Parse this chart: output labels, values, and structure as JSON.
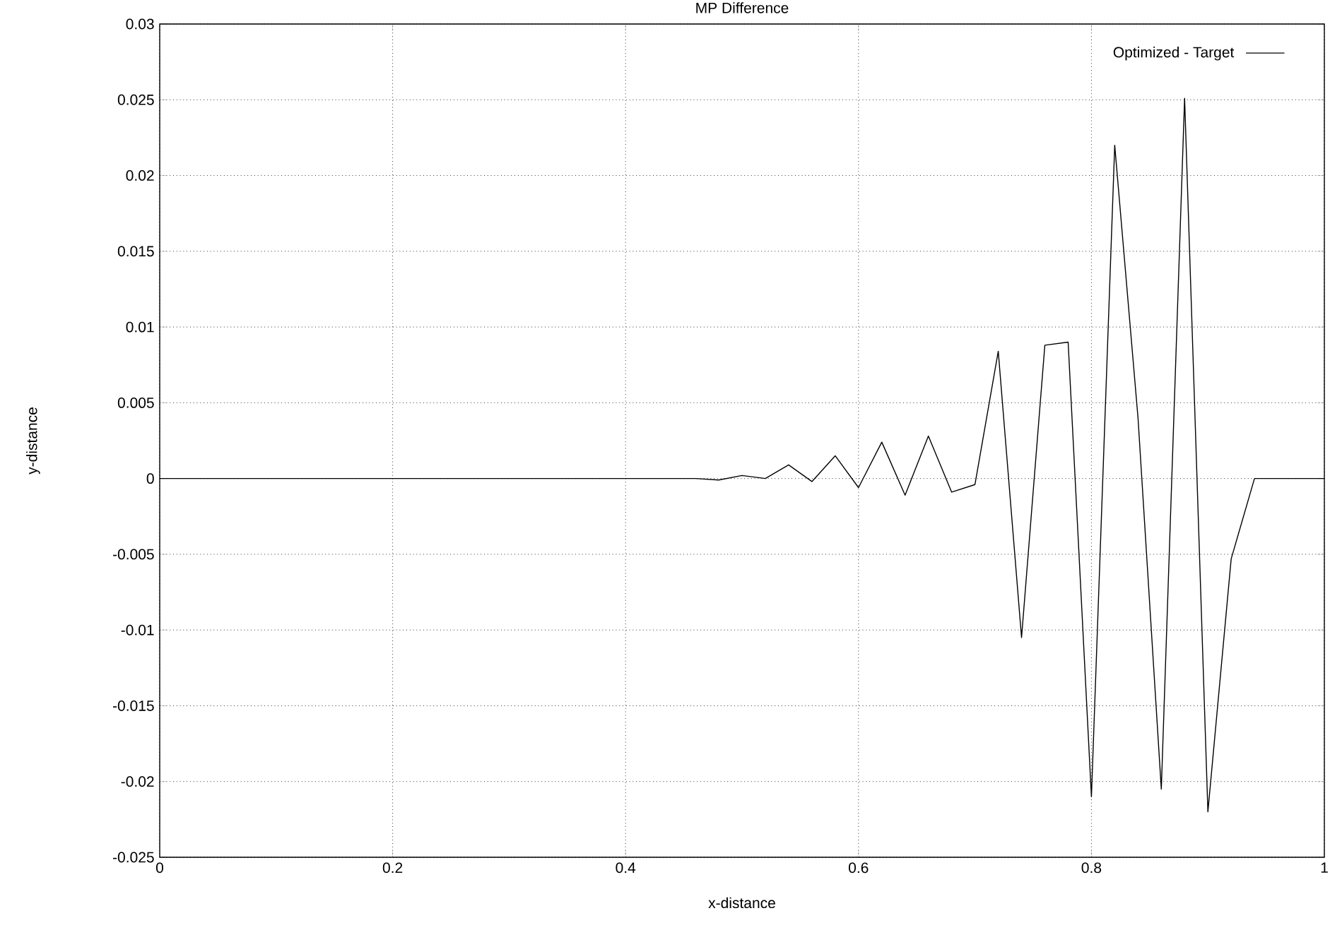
{
  "chart_data": {
    "type": "line",
    "title": "MP Difference",
    "xlabel": "x-distance",
    "ylabel": "y-distance",
    "xlim": [
      0,
      1
    ],
    "ylim": [
      -0.025,
      0.03
    ],
    "xticks": [
      0,
      0.2,
      0.4,
      0.6,
      0.8,
      1
    ],
    "yticks": [
      -0.025,
      -0.02,
      -0.015,
      -0.01,
      -0.005,
      0,
      0.005,
      0.01,
      0.015,
      0.02,
      0.025,
      0.03
    ],
    "grid": true,
    "legend": "top right",
    "line_style": "solid",
    "marker": "none",
    "series": [
      {
        "name": "Optimized - Target",
        "color": "#000000",
        "x": [
          0,
          0.02,
          0.04,
          0.06,
          0.08,
          0.1,
          0.12,
          0.14,
          0.16,
          0.18,
          0.2,
          0.22,
          0.24,
          0.26,
          0.28,
          0.3,
          0.32,
          0.34,
          0.36,
          0.38,
          0.4,
          0.42,
          0.44,
          0.46,
          0.48,
          0.5,
          0.52,
          0.54,
          0.56,
          0.58,
          0.6,
          0.62,
          0.64,
          0.66,
          0.68,
          0.7,
          0.72,
          0.74,
          0.76,
          0.78,
          0.8,
          0.82,
          0.84,
          0.86,
          0.88,
          0.9,
          0.92,
          0.94,
          0.96,
          0.98,
          1
        ],
        "values": [
          0,
          0,
          0,
          0,
          0,
          0,
          0,
          0,
          0,
          0,
          0,
          0,
          0,
          0,
          0,
          0,
          0,
          0,
          0,
          0,
          0,
          0,
          0,
          0,
          -0.0001,
          0.0002,
          0,
          0.0009,
          -0.0002,
          0.0015,
          -0.0006,
          0.0024,
          -0.0011,
          0.0028,
          -0.0009,
          -0.0004,
          0.0084,
          -0.0105,
          0.0088,
          0.009,
          -0.021,
          0.022,
          0.004,
          -0.0205,
          0.0251,
          -0.022,
          -0.0053,
          0,
          0,
          0,
          0
        ]
      }
    ]
  }
}
